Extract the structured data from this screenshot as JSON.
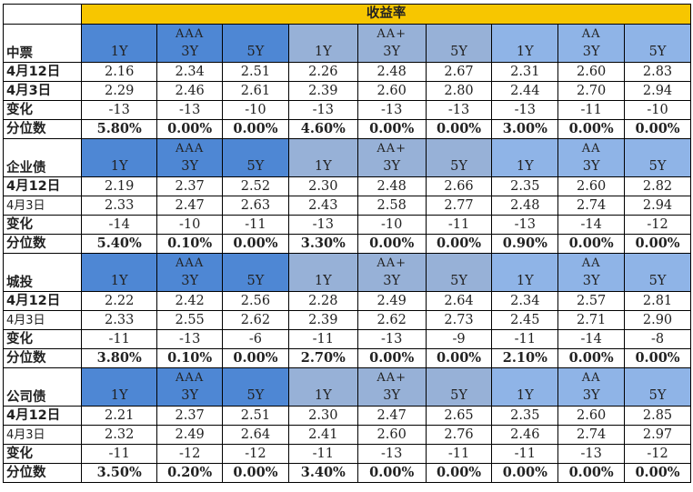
{
  "title": "收益率",
  "groups": [
    "AAA",
    "AA+",
    "AA"
  ],
  "tenors": [
    "1Y",
    "3Y",
    "5Y"
  ],
  "colors": {
    "title_bg": "#f7c600",
    "aaa_header": "#4e87d4",
    "aaplus_header": "#97b1d7",
    "aa_header": "#8fb4e7"
  },
  "sections": [
    {
      "name": "中票",
      "rows": [
        {
          "label": "4月12日",
          "bold": true,
          "values": [
            "2.16",
            "2.34",
            "2.51",
            "2.26",
            "2.48",
            "2.67",
            "2.31",
            "2.60",
            "2.83"
          ]
        },
        {
          "label": "4月3日",
          "bold": true,
          "values": [
            "2.29",
            "2.46",
            "2.61",
            "2.39",
            "2.60",
            "2.80",
            "2.44",
            "2.70",
            "2.94"
          ]
        },
        {
          "label": "变化",
          "bold": true,
          "values": [
            "-13",
            "-13",
            "-10",
            "-13",
            "-13",
            "-13",
            "-13",
            "-11",
            "-10"
          ]
        },
        {
          "label": "分位数",
          "bold": true,
          "pct": true,
          "values": [
            "5.80%",
            "0.00%",
            "0.00%",
            "4.60%",
            "0.00%",
            "0.00%",
            "3.00%",
            "0.00%",
            "0.00%"
          ]
        }
      ]
    },
    {
      "name": "企业债",
      "rows": [
        {
          "label": "4月12日",
          "bold": true,
          "values": [
            "2.19",
            "2.37",
            "2.52",
            "2.30",
            "2.48",
            "2.66",
            "2.35",
            "2.60",
            "2.82"
          ]
        },
        {
          "label": "4月3日",
          "bold": false,
          "values": [
            "2.33",
            "2.47",
            "2.63",
            "2.43",
            "2.58",
            "2.77",
            "2.48",
            "2.74",
            "2.94"
          ]
        },
        {
          "label": "变化",
          "bold": true,
          "values": [
            "-14",
            "-10",
            "-11",
            "-13",
            "-10",
            "-11",
            "-13",
            "-14",
            "-12"
          ]
        },
        {
          "label": "分位数",
          "bold": true,
          "pct": true,
          "values": [
            "5.40%",
            "0.10%",
            "0.00%",
            "3.30%",
            "0.00%",
            "0.00%",
            "0.90%",
            "0.00%",
            "0.00%"
          ]
        }
      ]
    },
    {
      "name": "城投",
      "rows": [
        {
          "label": "4月12日",
          "bold": true,
          "values": [
            "2.22",
            "2.42",
            "2.56",
            "2.28",
            "2.49",
            "2.64",
            "2.34",
            "2.57",
            "2.81"
          ]
        },
        {
          "label": "4月3日",
          "bold": false,
          "values": [
            "2.33",
            "2.55",
            "2.62",
            "2.39",
            "2.62",
            "2.73",
            "2.45",
            "2.71",
            "2.90"
          ]
        },
        {
          "label": "变化",
          "bold": true,
          "values": [
            "-11",
            "-13",
            "-6",
            "-11",
            "-13",
            "-9",
            "-11",
            "-14",
            "-8"
          ]
        },
        {
          "label": "分位数",
          "bold": true,
          "pct": true,
          "values": [
            "3.80%",
            "0.10%",
            "0.00%",
            "2.70%",
            "0.00%",
            "0.00%",
            "2.10%",
            "0.00%",
            "0.00%"
          ]
        }
      ]
    },
    {
      "name": "公司债",
      "rows": [
        {
          "label": "4月12日",
          "bold": true,
          "values": [
            "2.21",
            "2.37",
            "2.51",
            "2.30",
            "2.47",
            "2.65",
            "2.35",
            "2.60",
            "2.85"
          ]
        },
        {
          "label": "4月3日",
          "bold": false,
          "values": [
            "2.32",
            "2.49",
            "2.64",
            "2.41",
            "2.60",
            "2.76",
            "2.46",
            "2.74",
            "2.97"
          ]
        },
        {
          "label": "变化",
          "bold": true,
          "values": [
            "-11",
            "-12",
            "-12",
            "-11",
            "-13",
            "-11",
            "-11",
            "-13",
            "-12"
          ]
        },
        {
          "label": "分位数",
          "bold": true,
          "pct": true,
          "values": [
            "3.50%",
            "0.20%",
            "0.00%",
            "3.40%",
            "0.00%",
            "0.00%",
            "0.00%",
            "0.00%",
            "0.00%"
          ]
        }
      ]
    }
  ]
}
